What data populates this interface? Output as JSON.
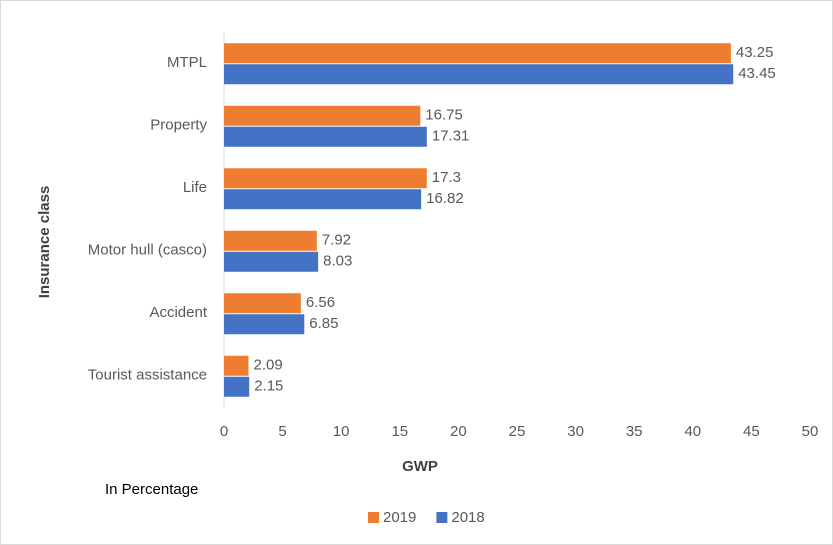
{
  "chart_data": {
    "type": "hbar",
    "x_label": "GWP",
    "y_label": "Insurance class",
    "annotation": "In Percentage",
    "categories": [
      "MTPL",
      "Property",
      "Life",
      "Motor hull (casco)",
      "Accident",
      "Tourist assistance"
    ],
    "series": [
      {
        "name": "2019",
        "color": "#ed7d31",
        "values": [
          43.25,
          16.75,
          17.3,
          7.92,
          6.56,
          2.09
        ]
      },
      {
        "name": "2018",
        "color": "#4472c4",
        "values": [
          43.45,
          17.31,
          16.82,
          8.03,
          6.85,
          2.15
        ]
      }
    ],
    "xlim": [
      0,
      50
    ],
    "xticks": [
      0,
      5,
      10,
      15,
      20,
      25,
      30,
      35,
      40,
      45,
      50
    ],
    "grid": false,
    "legend": "bottom"
  }
}
